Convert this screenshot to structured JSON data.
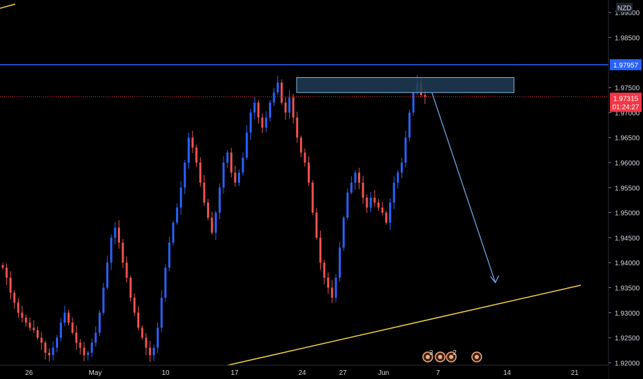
{
  "currency": "NZD",
  "colors": {
    "up": "#2962ff",
    "down": "#ef5350",
    "resistance_line": "#2962ff",
    "trendline": "#f5d33f",
    "zone_fill": "#1e3c55",
    "zone_stroke": "#7fb8e0",
    "arrow": "#6aa8e8",
    "current_price": "#f23645",
    "axis_text": "#d1d4dc",
    "event_icon": "#f7a97a"
  },
  "y_axis": {
    "ticks": [
      "1.99000",
      "1.98500",
      "1.97500",
      "1.97000",
      "1.96500",
      "1.96000",
      "1.95500",
      "1.95000",
      "1.94500",
      "1.94000",
      "1.93500",
      "1.93000",
      "1.92500",
      "1.92000"
    ]
  },
  "x_axis": {
    "ticks": [
      "26",
      "May",
      "10",
      "17",
      "24",
      "27",
      "Jun",
      "7",
      "14",
      "21"
    ]
  },
  "resistance": {
    "value": 1.97957,
    "label": "1.97957"
  },
  "current": {
    "price_label": "1.97315",
    "countdown": "01:24:27"
  },
  "events": [
    "3",
    "2",
    ""
  ],
  "chart_data": {
    "type": "candlestick",
    "instrument_quote": "NZD",
    "ylim": [
      1.9195,
      1.9925
    ],
    "x_dates": [
      "26",
      "May",
      "10",
      "17",
      "24",
      "27",
      "Jun",
      "7",
      "14",
      "21"
    ],
    "horizontal_line": 1.97957,
    "current_price": 1.97315,
    "supply_zone": {
      "top": 1.977,
      "bottom": 1.974
    },
    "trendline": {
      "from": 1.9195,
      "to": 1.9355
    },
    "projection_arrow": {
      "from": 1.974,
      "to": 1.936
    },
    "closes": [
      1.939,
      1.937,
      1.934,
      1.932,
      1.93,
      1.929,
      1.928,
      1.927,
      1.9265,
      1.925,
      1.924,
      1.922,
      1.9215,
      1.923,
      1.925,
      1.928,
      1.93,
      1.928,
      1.926,
      1.924,
      1.923,
      1.9215,
      1.922,
      1.924,
      1.926,
      1.93,
      1.935,
      1.94,
      1.945,
      1.947,
      1.944,
      1.94,
      1.937,
      1.933,
      1.93,
      1.927,
      1.925,
      1.923,
      1.9215,
      1.923,
      1.927,
      1.933,
      1.939,
      1.944,
      1.948,
      1.951,
      1.955,
      1.96,
      1.965,
      1.963,
      1.96,
      1.956,
      1.952,
      1.949,
      1.946,
      1.95,
      1.955,
      1.96,
      1.962,
      1.958,
      1.956,
      1.958,
      1.961,
      1.966,
      1.97,
      1.972,
      1.969,
      1.967,
      1.969,
      1.972,
      1.974,
      1.976,
      1.972,
      1.97,
      1.973,
      1.969,
      1.965,
      1.962,
      1.96,
      1.956,
      1.95,
      1.945,
      1.94,
      1.937,
      1.935,
      1.933,
      1.937,
      1.943,
      1.949,
      1.954,
      1.956,
      1.958,
      1.956,
      1.953,
      1.951,
      1.953,
      1.952,
      1.951,
      1.95,
      1.948,
      1.952,
      1.956,
      1.958,
      1.96,
      1.965,
      1.97,
      1.974,
      1.976,
      1.9735,
      1.97315
    ]
  }
}
